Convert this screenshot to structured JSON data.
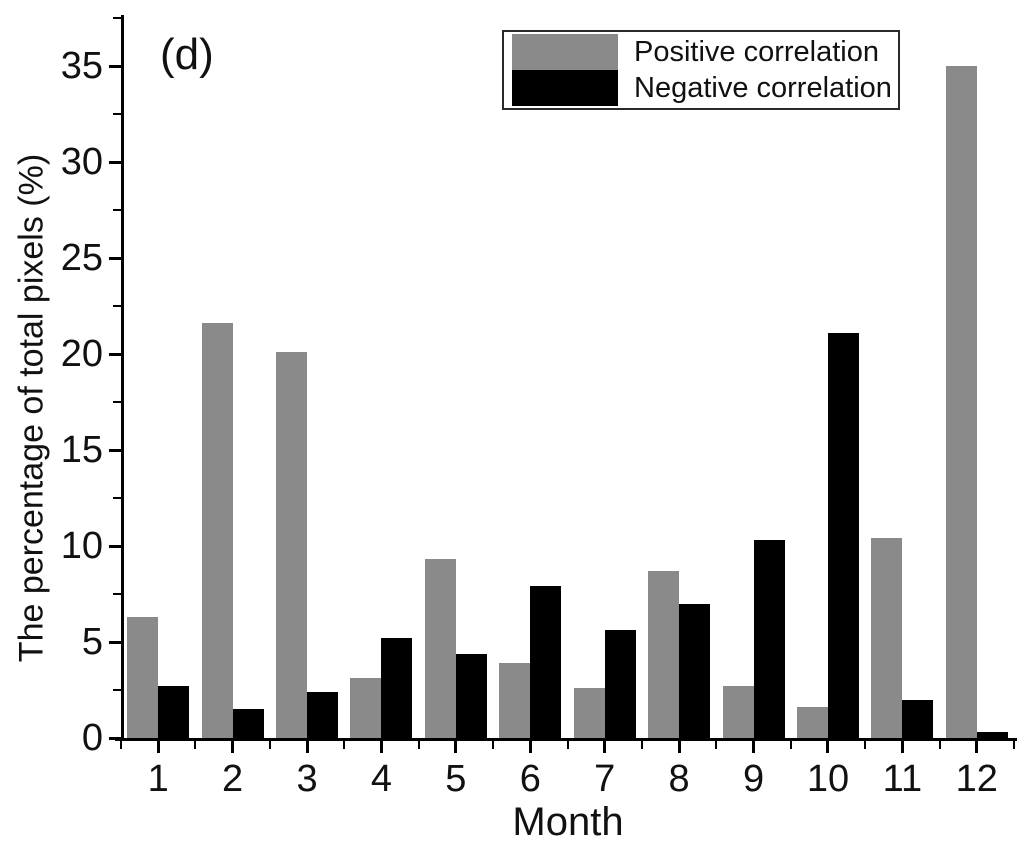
{
  "chart_data": {
    "type": "bar",
    "panel_label": "(d)",
    "title": "",
    "xlabel": "Month",
    "ylabel": "The percentage of total pixels (%)",
    "categories": [
      "1",
      "2",
      "3",
      "4",
      "5",
      "6",
      "7",
      "8",
      "9",
      "10",
      "11",
      "12"
    ],
    "series": [
      {
        "name": "Positive correlation",
        "color": "#8a8a8a",
        "values": [
          6.3,
          21.6,
          20.1,
          3.1,
          9.3,
          3.9,
          2.6,
          8.7,
          2.7,
          1.6,
          10.4,
          35.0
        ]
      },
      {
        "name": "Negative correlation",
        "color": "#000000",
        "values": [
          2.7,
          1.5,
          2.4,
          5.2,
          4.4,
          7.9,
          5.6,
          7.0,
          10.3,
          21.1,
          2.0,
          0.3
        ]
      }
    ],
    "ylim": [
      0,
      37.5
    ],
    "yticks_major": [
      0,
      5,
      10,
      15,
      20,
      25,
      30,
      35
    ],
    "ytick_minor_step": 2.5,
    "grid": false,
    "legend_position": "top-center",
    "axis_color": "#000000"
  }
}
